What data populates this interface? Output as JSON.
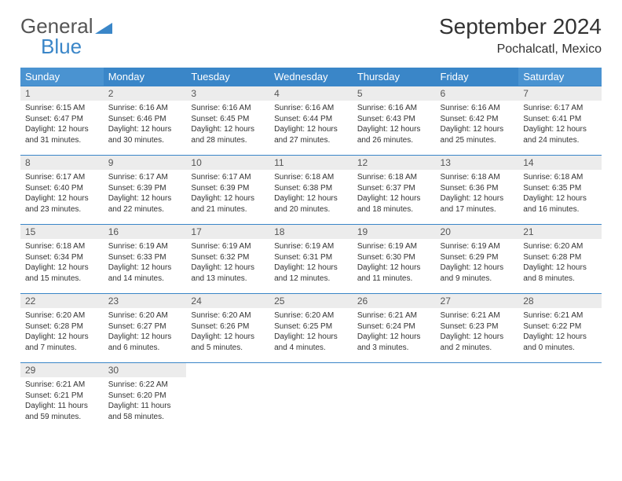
{
  "brand": {
    "part1": "General",
    "part2": "Blue"
  },
  "title": "September 2024",
  "location": "Pochalcatl, Mexico",
  "colors": {
    "header_bg": "#3a86c8",
    "header_bg_weekend": "#4a93d1",
    "header_text": "#ffffff",
    "daynum_bg": "#ececec",
    "border": "#3a86c8",
    "text": "#333333"
  },
  "weekdays": [
    "Sunday",
    "Monday",
    "Tuesday",
    "Wednesday",
    "Thursday",
    "Friday",
    "Saturday"
  ],
  "layout": {
    "start_offset": 0,
    "total_days": 30,
    "cols": 7,
    "rows": 5
  },
  "days": [
    {
      "n": 1,
      "sunrise": "6:15 AM",
      "sunset": "6:47 PM",
      "dl": "12 hours and 31 minutes."
    },
    {
      "n": 2,
      "sunrise": "6:16 AM",
      "sunset": "6:46 PM",
      "dl": "12 hours and 30 minutes."
    },
    {
      "n": 3,
      "sunrise": "6:16 AM",
      "sunset": "6:45 PM",
      "dl": "12 hours and 28 minutes."
    },
    {
      "n": 4,
      "sunrise": "6:16 AM",
      "sunset": "6:44 PM",
      "dl": "12 hours and 27 minutes."
    },
    {
      "n": 5,
      "sunrise": "6:16 AM",
      "sunset": "6:43 PM",
      "dl": "12 hours and 26 minutes."
    },
    {
      "n": 6,
      "sunrise": "6:16 AM",
      "sunset": "6:42 PM",
      "dl": "12 hours and 25 minutes."
    },
    {
      "n": 7,
      "sunrise": "6:17 AM",
      "sunset": "6:41 PM",
      "dl": "12 hours and 24 minutes."
    },
    {
      "n": 8,
      "sunrise": "6:17 AM",
      "sunset": "6:40 PM",
      "dl": "12 hours and 23 minutes."
    },
    {
      "n": 9,
      "sunrise": "6:17 AM",
      "sunset": "6:39 PM",
      "dl": "12 hours and 22 minutes."
    },
    {
      "n": 10,
      "sunrise": "6:17 AM",
      "sunset": "6:39 PM",
      "dl": "12 hours and 21 minutes."
    },
    {
      "n": 11,
      "sunrise": "6:18 AM",
      "sunset": "6:38 PM",
      "dl": "12 hours and 20 minutes."
    },
    {
      "n": 12,
      "sunrise": "6:18 AM",
      "sunset": "6:37 PM",
      "dl": "12 hours and 18 minutes."
    },
    {
      "n": 13,
      "sunrise": "6:18 AM",
      "sunset": "6:36 PM",
      "dl": "12 hours and 17 minutes."
    },
    {
      "n": 14,
      "sunrise": "6:18 AM",
      "sunset": "6:35 PM",
      "dl": "12 hours and 16 minutes."
    },
    {
      "n": 15,
      "sunrise": "6:18 AM",
      "sunset": "6:34 PM",
      "dl": "12 hours and 15 minutes."
    },
    {
      "n": 16,
      "sunrise": "6:19 AM",
      "sunset": "6:33 PM",
      "dl": "12 hours and 14 minutes."
    },
    {
      "n": 17,
      "sunrise": "6:19 AM",
      "sunset": "6:32 PM",
      "dl": "12 hours and 13 minutes."
    },
    {
      "n": 18,
      "sunrise": "6:19 AM",
      "sunset": "6:31 PM",
      "dl": "12 hours and 12 minutes."
    },
    {
      "n": 19,
      "sunrise": "6:19 AM",
      "sunset": "6:30 PM",
      "dl": "12 hours and 11 minutes."
    },
    {
      "n": 20,
      "sunrise": "6:19 AM",
      "sunset": "6:29 PM",
      "dl": "12 hours and 9 minutes."
    },
    {
      "n": 21,
      "sunrise": "6:20 AM",
      "sunset": "6:28 PM",
      "dl": "12 hours and 8 minutes."
    },
    {
      "n": 22,
      "sunrise": "6:20 AM",
      "sunset": "6:28 PM",
      "dl": "12 hours and 7 minutes."
    },
    {
      "n": 23,
      "sunrise": "6:20 AM",
      "sunset": "6:27 PM",
      "dl": "12 hours and 6 minutes."
    },
    {
      "n": 24,
      "sunrise": "6:20 AM",
      "sunset": "6:26 PM",
      "dl": "12 hours and 5 minutes."
    },
    {
      "n": 25,
      "sunrise": "6:20 AM",
      "sunset": "6:25 PM",
      "dl": "12 hours and 4 minutes."
    },
    {
      "n": 26,
      "sunrise": "6:21 AM",
      "sunset": "6:24 PM",
      "dl": "12 hours and 3 minutes."
    },
    {
      "n": 27,
      "sunrise": "6:21 AM",
      "sunset": "6:23 PM",
      "dl": "12 hours and 2 minutes."
    },
    {
      "n": 28,
      "sunrise": "6:21 AM",
      "sunset": "6:22 PM",
      "dl": "12 hours and 0 minutes."
    },
    {
      "n": 29,
      "sunrise": "6:21 AM",
      "sunset": "6:21 PM",
      "dl": "11 hours and 59 minutes."
    },
    {
      "n": 30,
      "sunrise": "6:22 AM",
      "sunset": "6:20 PM",
      "dl": "11 hours and 58 minutes."
    }
  ],
  "labels": {
    "sunrise": "Sunrise:",
    "sunset": "Sunset:",
    "daylight": "Daylight:"
  }
}
